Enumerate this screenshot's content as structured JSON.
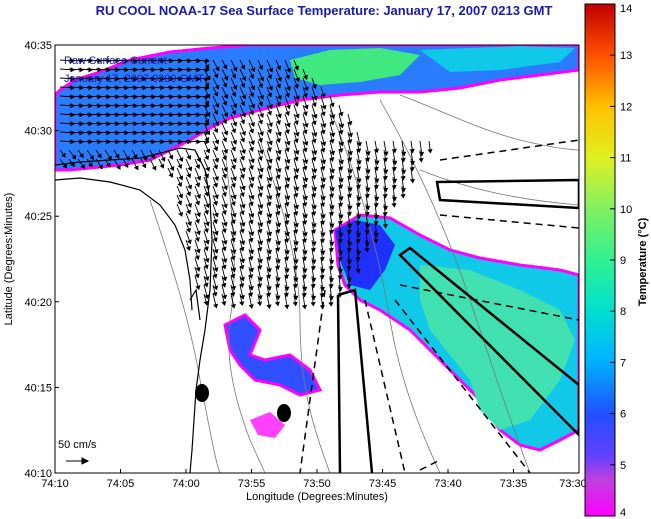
{
  "title": "RU COOL  NOAA-17  Sea Surface Temperature:  January 17, 2007 0213 GMT",
  "overlay": {
    "line1": "Raw Surface Current",
    "line2": "January 17, 2007 0200 GMT"
  },
  "scale_label": "50 cm/s",
  "x_axis": {
    "label": "Longitude (Degrees:Minutes)",
    "ticks": [
      "74:10",
      "74:05",
      "74:00",
      "73:55",
      "73:50",
      "73:45",
      "73:40",
      "73:35",
      "73:30"
    ]
  },
  "y_axis": {
    "label": "Latitude (Degrees:Minutes)",
    "ticks": [
      "40:35",
      "40:30",
      "40:25",
      "40:20",
      "40:15",
      "40:10"
    ]
  },
  "colorbar": {
    "label": "Temperature (°C)",
    "ticks": [
      "14",
      "13",
      "12",
      "11",
      "10",
      "9",
      "8",
      "7",
      "6",
      "5",
      "4"
    ],
    "min": 4,
    "max": 14
  },
  "colors": {
    "title": "#1a1aa8",
    "land_outline": "#000000"
  }
}
